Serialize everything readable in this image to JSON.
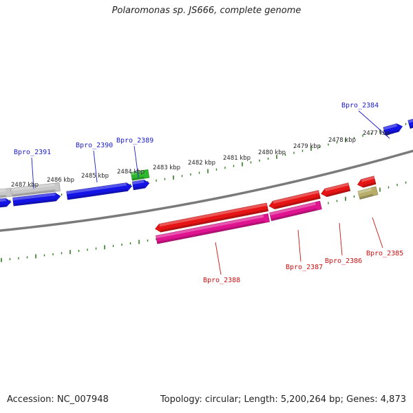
{
  "title": "Polaromonas sp. JS666, complete genome",
  "accession_text": "Accession: NC_007948",
  "summary_text": "Topology: circular; Length: 5,200,264 bp; Genes: 4,873",
  "colors": {
    "backbone": "#7a7a7a",
    "tick": "#2e7d1e",
    "label_forward": "#1a1ad0",
    "label_reverse": "#d01010",
    "leader": "#1a1ad0"
  },
  "scale_labels": [
    "2487 kbp",
    "2486 kbp",
    "2485 kbp",
    "2484 kbp",
    "2483 kbp",
    "2482 kbp",
    "2481 kbp",
    "2480 kbp",
    "2479 kbp",
    "2478 kbp",
    "2477 kbp"
  ],
  "gene_labels": [
    {
      "name": "Bpro_2391",
      "strand": "forward"
    },
    {
      "name": "Bpro_2390",
      "strand": "forward"
    },
    {
      "name": "Bpro_2389",
      "strand": "forward"
    },
    {
      "name": "Bpro_2384",
      "strand": "forward"
    },
    {
      "name": "Bpro_2388",
      "strand": "reverse"
    },
    {
      "name": "Bpro_2387",
      "strand": "reverse"
    },
    {
      "name": "Bpro_2386",
      "strand": "reverse"
    },
    {
      "name": "Bpro_2385",
      "strand": "reverse"
    }
  ],
  "features": [
    {
      "name": "gray-block-left",
      "color": "#c8c8c8"
    },
    {
      "name": "gray-block",
      "color": "#c8c8c8"
    },
    {
      "name": "green-block",
      "color": "#2eb82e"
    },
    {
      "name": "blue-small-left",
      "color": "#1414e6"
    },
    {
      "name": "blue-bpro-2391",
      "color": "#1414e6"
    },
    {
      "name": "blue-bpro-2390",
      "color": "#1414e6"
    },
    {
      "name": "blue-bpro-2389",
      "color": "#1414e6"
    },
    {
      "name": "blue-bpro-2384",
      "color": "#1414e6"
    },
    {
      "name": "blue-right-edge",
      "color": "#1414e6"
    },
    {
      "name": "red-bpro-2388",
      "color": "#e61414"
    },
    {
      "name": "red-bpro-2387",
      "color": "#e61414"
    },
    {
      "name": "red-bpro-2386",
      "color": "#e61414"
    },
    {
      "name": "red-small",
      "color": "#e61414"
    },
    {
      "name": "pink-bpro-2388",
      "color": "#e01490"
    },
    {
      "name": "pink-bpro-2387",
      "color": "#e01490"
    },
    {
      "name": "olive-block",
      "color": "#b8ae6a"
    }
  ]
}
